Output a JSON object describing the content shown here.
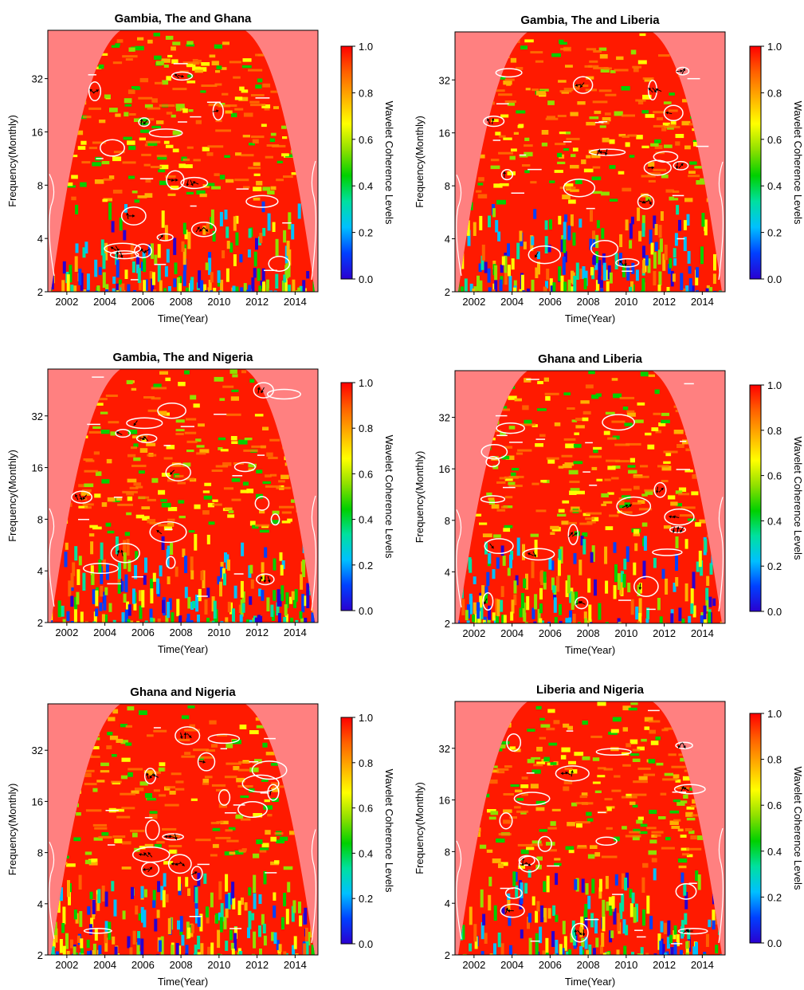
{
  "page": {
    "background": "#ffffff"
  },
  "chart_data": [
    {
      "type": "heatmap",
      "title": "Gambia, The and Ghana",
      "xlabel": "Time(Year)",
      "ylabel": "Frequency(Monthly)",
      "xlim": [
        2001,
        2015.2
      ],
      "ylim": [
        2,
        60
      ],
      "y_scale": "log2",
      "x_ticks": [
        "2002",
        "2004",
        "2006",
        "2008",
        "2010",
        "2012",
        "2014"
      ],
      "y_ticks": [
        "2",
        "4",
        "8",
        "16",
        "32"
      ],
      "colorbar": {
        "label": "Wavelet Coherence Levels",
        "ticks": [
          "0.0",
          "0.2",
          "0.4",
          "0.6",
          "0.8",
          "1.0"
        ],
        "range": [
          0,
          1
        ]
      },
      "cone_of_influence": true,
      "significance_contours": true
    },
    {
      "type": "heatmap",
      "title": "Gambia, The and Liberia",
      "xlabel": "Time(Year)",
      "ylabel": "Frequency(Monthly)",
      "xlim": [
        2001,
        2015.2
      ],
      "ylim": [
        2,
        60
      ],
      "y_scale": "log2",
      "x_ticks": [
        "2002",
        "2004",
        "2006",
        "2008",
        "2010",
        "2012",
        "2014"
      ],
      "y_ticks": [
        "2",
        "4",
        "8",
        "16",
        "32"
      ],
      "colorbar": {
        "label": "Wavelet Coherence Levels",
        "ticks": [
          "0.0",
          "0.2",
          "0.4",
          "0.6",
          "0.8",
          "1.0"
        ],
        "range": [
          0,
          1
        ]
      },
      "cone_of_influence": true,
      "significance_contours": true
    },
    {
      "type": "heatmap",
      "title": "Gambia, The and Nigeria",
      "xlabel": "Time(Year)",
      "ylabel": "Frequency(Monthly)",
      "xlim": [
        2001,
        2015.2
      ],
      "ylim": [
        2,
        60
      ],
      "y_scale": "log2",
      "x_ticks": [
        "2002",
        "2004",
        "2006",
        "2008",
        "2010",
        "2012",
        "2014"
      ],
      "y_ticks": [
        "2",
        "4",
        "8",
        "16",
        "32"
      ],
      "colorbar": {
        "label": "Wavelet Coherence Levels",
        "ticks": [
          "0.0",
          "0.2",
          "0.4",
          "0.6",
          "0.8",
          "1.0"
        ],
        "range": [
          0,
          1
        ]
      },
      "cone_of_influence": true,
      "significance_contours": true
    },
    {
      "type": "heatmap",
      "title": "Ghana and Liberia",
      "xlabel": "Time(Year)",
      "ylabel": "Frequency(Monthly)",
      "xlim": [
        2001,
        2015.2
      ],
      "ylim": [
        2,
        60
      ],
      "y_scale": "log2",
      "x_ticks": [
        "2002",
        "2004",
        "2006",
        "2008",
        "2010",
        "2012",
        "2014"
      ],
      "y_ticks": [
        "2",
        "4",
        "8",
        "16",
        "32"
      ],
      "colorbar": {
        "label": "Wavelet Coherence Levels",
        "ticks": [
          "0.0",
          "0.2",
          "0.4",
          "0.6",
          "0.8",
          "1.0"
        ],
        "range": [
          0,
          1
        ]
      },
      "cone_of_influence": true,
      "significance_contours": true
    },
    {
      "type": "heatmap",
      "title": "Ghana and Nigeria",
      "xlabel": "Time(Year)",
      "ylabel": "Frequency(Monthly)",
      "xlim": [
        2001,
        2015.2
      ],
      "ylim": [
        2,
        60
      ],
      "y_scale": "log2",
      "x_ticks": [
        "2002",
        "2004",
        "2006",
        "2008",
        "2010",
        "2012",
        "2014"
      ],
      "y_ticks": [
        "2",
        "4",
        "8",
        "16",
        "32"
      ],
      "colorbar": {
        "label": "Wavelet Coherence Levels",
        "ticks": [
          "0.0",
          "0.2",
          "0.4",
          "0.6",
          "0.8",
          "1.0"
        ],
        "range": [
          0,
          1
        ]
      },
      "cone_of_influence": true,
      "significance_contours": true
    },
    {
      "type": "heatmap",
      "title": "Liberia and Nigeria",
      "xlabel": "Time(Year)",
      "ylabel": "Frequency(Monthly)",
      "xlim": [
        2001,
        2015.2
      ],
      "ylim": [
        2,
        60
      ],
      "y_scale": "log2",
      "x_ticks": [
        "2002",
        "2004",
        "2006",
        "2008",
        "2010",
        "2012",
        "2014"
      ],
      "y_ticks": [
        "2",
        "4",
        "8",
        "16",
        "32"
      ],
      "colorbar": {
        "label": "Wavelet Coherence Levels",
        "ticks": [
          "0.0",
          "0.2",
          "0.4",
          "0.6",
          "0.8",
          "1.0"
        ],
        "range": [
          0,
          1
        ]
      },
      "cone_of_influence": true,
      "significance_contours": true
    }
  ],
  "colors": {
    "high_coherence": "#ff1a00",
    "outside_cone": "#ff8080",
    "contour": "#ffffff",
    "arrow": "#000000",
    "colorbar_stops": [
      "#2a00d0",
      "#0040ff",
      "#00c0ff",
      "#00e0a0",
      "#00d000",
      "#90e000",
      "#ffff00",
      "#ffb000",
      "#ff6000",
      "#ff0000"
    ]
  }
}
